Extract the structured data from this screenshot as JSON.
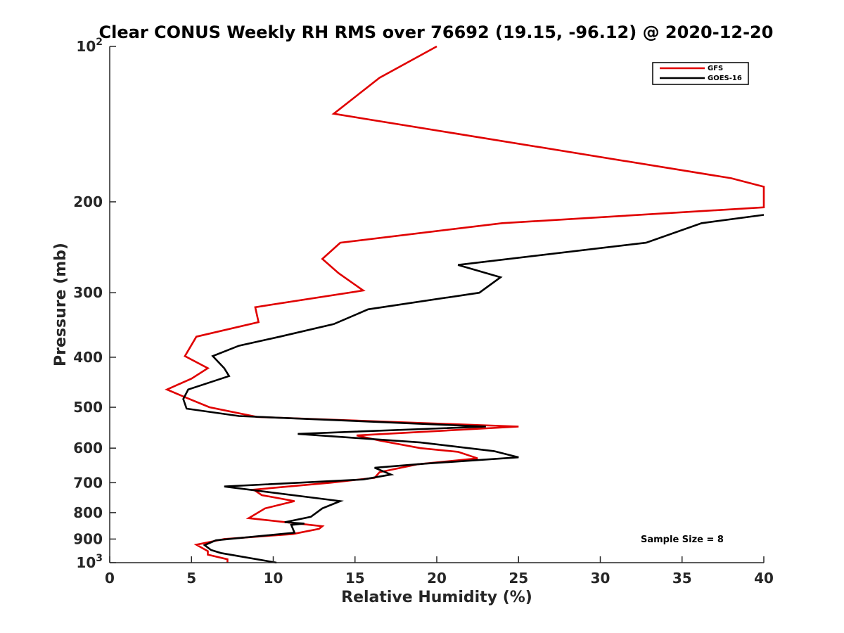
{
  "chart_data": {
    "type": "line",
    "title": "Clear CONUS Weekly RH RMS over 76692 (19.15, -96.12) @ 2020-12-20",
    "xlabel": "Relative Humidity (%)",
    "ylabel": "Pressure (mb)",
    "xlim": [
      0,
      40
    ],
    "ylim": [
      100,
      1000
    ],
    "yscale": "log",
    "y_reversed": true,
    "grid": false,
    "legend_position": "top-right",
    "x_ticks": [
      0,
      5,
      10,
      15,
      20,
      25,
      30,
      35,
      40
    ],
    "x_tick_labels": [
      "0",
      "5",
      "10",
      "15",
      "20",
      "25",
      "30",
      "35",
      "40"
    ],
    "y_ticks": [
      100,
      200,
      300,
      400,
      500,
      600,
      700,
      800,
      900,
      1000
    ],
    "y_tick_labels": [
      {
        "base": "10",
        "exp": "2"
      },
      {
        "base": "200",
        "exp": ""
      },
      {
        "base": "300",
        "exp": ""
      },
      {
        "base": "400",
        "exp": ""
      },
      {
        "base": "500",
        "exp": ""
      },
      {
        "base": "600",
        "exp": ""
      },
      {
        "base": "700",
        "exp": ""
      },
      {
        "base": "800",
        "exp": ""
      },
      {
        "base": "900",
        "exp": ""
      },
      {
        "base": "10",
        "exp": "3"
      }
    ],
    "annotation": "Sample Size = 8",
    "series": [
      {
        "name": "GFS",
        "color": "#e00000",
        "points": [
          [
            20.0,
            100
          ],
          [
            16.5,
            115
          ],
          [
            13.7,
            135
          ],
          [
            38.0,
            180
          ],
          [
            40.0,
            187
          ],
          [
            40.0,
            205
          ],
          [
            24.0,
            220
          ],
          [
            14.1,
            240
          ],
          [
            13.0,
            258
          ],
          [
            14.0,
            275
          ],
          [
            15.5,
            297
          ],
          [
            8.9,
            320
          ],
          [
            9.1,
            342
          ],
          [
            5.3,
            365
          ],
          [
            4.6,
            398
          ],
          [
            6.0,
            420
          ],
          [
            5.0,
            440
          ],
          [
            3.5,
            462
          ],
          [
            4.6,
            478
          ],
          [
            6.1,
            500
          ],
          [
            9.0,
            522
          ],
          [
            25.0,
            545
          ],
          [
            15.1,
            567
          ],
          [
            16.5,
            580
          ],
          [
            19.0,
            600
          ],
          [
            21.3,
            610
          ],
          [
            22.5,
            628
          ],
          [
            18.8,
            645
          ],
          [
            16.5,
            668
          ],
          [
            16.2,
            685
          ],
          [
            13.5,
            700
          ],
          [
            8.8,
            722
          ],
          [
            9.3,
            740
          ],
          [
            11.3,
            760
          ],
          [
            9.5,
            785
          ],
          [
            8.5,
            820
          ],
          [
            13.0,
            850
          ],
          [
            12.8,
            860
          ],
          [
            11.2,
            880
          ],
          [
            7.0,
            900
          ],
          [
            5.3,
            923
          ],
          [
            6.0,
            950
          ],
          [
            6.0,
            965
          ],
          [
            7.2,
            985
          ],
          [
            7.2,
            1000
          ]
        ]
      },
      {
        "name": "GOES-16",
        "color": "#000000",
        "points": [
          [
            40.0,
            212
          ],
          [
            36.2,
            220
          ],
          [
            32.8,
            240
          ],
          [
            21.3,
            265
          ],
          [
            23.9,
            280
          ],
          [
            22.6,
            300
          ],
          [
            15.8,
            323
          ],
          [
            13.7,
            345
          ],
          [
            10.4,
            365
          ],
          [
            7.9,
            380
          ],
          [
            6.3,
            398
          ],
          [
            7.0,
            420
          ],
          [
            7.3,
            435
          ],
          [
            4.8,
            462
          ],
          [
            4.5,
            482
          ],
          [
            4.7,
            503
          ],
          [
            7.9,
            520
          ],
          [
            23.0,
            545
          ],
          [
            11.5,
            563
          ],
          [
            19.0,
            585
          ],
          [
            23.5,
            608
          ],
          [
            25.0,
            625
          ],
          [
            19.3,
            643
          ],
          [
            16.2,
            655
          ],
          [
            17.2,
            675
          ],
          [
            15.5,
            690
          ],
          [
            7.0,
            712
          ],
          [
            14.1,
            760
          ],
          [
            13.0,
            785
          ],
          [
            12.3,
            815
          ],
          [
            10.7,
            835
          ],
          [
            11.9,
            840
          ],
          [
            11.1,
            845
          ],
          [
            11.3,
            875
          ],
          [
            6.5,
            905
          ],
          [
            5.8,
            925
          ],
          [
            6.2,
            945
          ],
          [
            6.8,
            958
          ],
          [
            10.2,
            1000
          ]
        ]
      }
    ]
  }
}
